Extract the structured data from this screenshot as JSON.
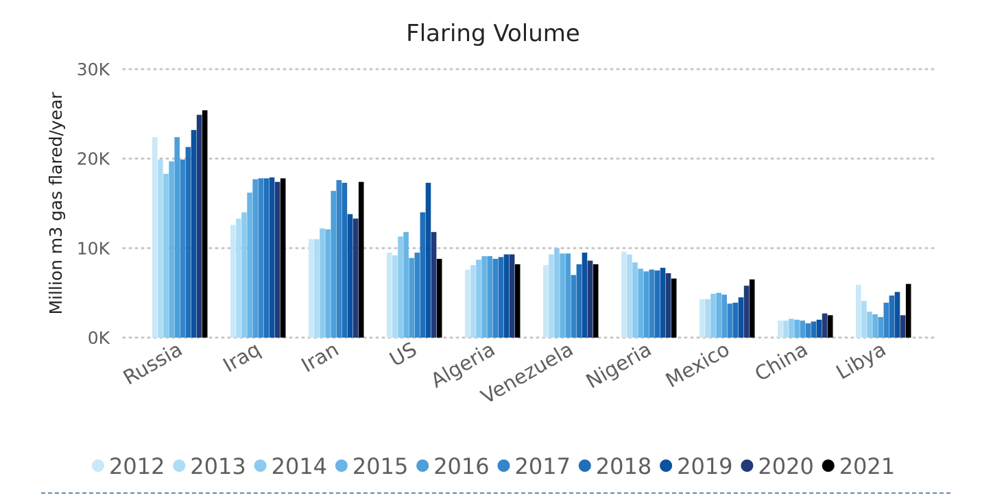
{
  "chart_data": {
    "type": "bar",
    "title": "Flaring Volume",
    "ylabel": "Million m3 gas flared/year",
    "xlabel": "",
    "ylim": [
      0,
      30000
    ],
    "yticks": [
      {
        "value": 0,
        "label": "0K"
      },
      {
        "value": 10000,
        "label": "10K"
      },
      {
        "value": 20000,
        "label": "20K"
      },
      {
        "value": 30000,
        "label": "30K"
      }
    ],
    "grid": true,
    "legend_position": "bottom",
    "categories": [
      "Russia",
      "Iraq",
      "Iran",
      "US",
      "Algeria",
      "Venezuela",
      "Nigeria",
      "Mexico",
      "China",
      "Libya"
    ],
    "series": [
      {
        "name": "2012",
        "color": "#c9e8f8",
        "values": [
          22400,
          12600,
          11000,
          9500,
          7600,
          8100,
          9600,
          4300,
          1900,
          5900
        ]
      },
      {
        "name": "2013",
        "color": "#aedcf5",
        "values": [
          19900,
          13300,
          11000,
          9200,
          8100,
          9300,
          9300,
          4300,
          1900,
          4100
        ]
      },
      {
        "name": "2014",
        "color": "#8ccbef",
        "values": [
          18300,
          14000,
          12200,
          11300,
          8700,
          10000,
          8400,
          4900,
          2100,
          2900
        ]
      },
      {
        "name": "2015",
        "color": "#68b5e6",
        "values": [
          19700,
          16200,
          12100,
          11800,
          9100,
          9400,
          7700,
          5000,
          2000,
          2600
        ]
      },
      {
        "name": "2016",
        "color": "#4d9fda",
        "values": [
          22400,
          17700,
          16400,
          8900,
          9100,
          9400,
          7400,
          4800,
          1900,
          2300
        ]
      },
      {
        "name": "2017",
        "color": "#3585cb",
        "values": [
          19900,
          17800,
          17600,
          9500,
          8800,
          7000,
          7600,
          3800,
          1600,
          3900
        ]
      },
      {
        "name": "2018",
        "color": "#1f6fbb",
        "values": [
          21300,
          17800,
          17300,
          14000,
          9000,
          8200,
          7500,
          3900,
          1800,
          4700
        ]
      },
      {
        "name": "2019",
        "color": "#0b52a0",
        "values": [
          23200,
          17900,
          13800,
          17300,
          9300,
          9500,
          7800,
          4500,
          2000,
          5100
        ]
      },
      {
        "name": "2020",
        "color": "#213a78",
        "values": [
          24900,
          17400,
          13300,
          11800,
          9300,
          8600,
          7200,
          5800,
          2700,
          2500
        ]
      },
      {
        "name": "2021",
        "color": "#000000",
        "values": [
          25400,
          17800,
          17400,
          8800,
          8200,
          8200,
          6600,
          6500,
          2500,
          6000
        ]
      }
    ]
  }
}
